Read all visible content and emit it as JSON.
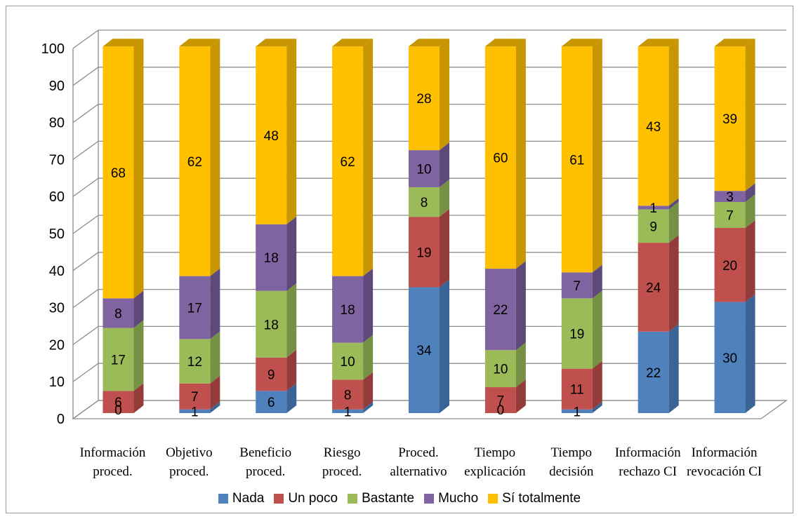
{
  "chart_data": {
    "type": "bar",
    "stacked": true,
    "three_d": true,
    "title": "",
    "xlabel": "",
    "ylabel": "",
    "ylim": [
      0,
      100
    ],
    "yticks": [
      "0",
      "10",
      "20",
      "30",
      "40",
      "50",
      "60",
      "70",
      "80",
      "90",
      "100"
    ],
    "grid": true,
    "legend_position": "bottom",
    "categories": [
      [
        "Información",
        "proced."
      ],
      [
        "Objetivo",
        "proced."
      ],
      [
        "Beneficio",
        "proced."
      ],
      [
        "Riesgo",
        "proced."
      ],
      [
        "Proced.",
        "alternativo"
      ],
      [
        "Tiempo",
        "explicación"
      ],
      [
        "Tiempo",
        "decisión"
      ],
      [
        "Información",
        "rechazo CI"
      ],
      [
        "Información",
        "revocación CI"
      ]
    ],
    "series": [
      {
        "name": "Nada",
        "color": "#4f81bd",
        "side": "#3a6496",
        "values": [
          0,
          1,
          6,
          1,
          34,
          0,
          1,
          22,
          30
        ]
      },
      {
        "name": "Un poco",
        "color": "#c0504d",
        "side": "#943c3a",
        "values": [
          6,
          7,
          9,
          8,
          19,
          7,
          11,
          24,
          20
        ]
      },
      {
        "name": "Bastante",
        "color": "#9bbb59",
        "side": "#769044",
        "values": [
          17,
          12,
          18,
          10,
          8,
          10,
          19,
          9,
          7
        ]
      },
      {
        "name": "Mucho",
        "color": "#8064a2",
        "side": "#5e4a7a",
        "values": [
          8,
          17,
          18,
          18,
          10,
          22,
          7,
          1,
          3
        ]
      },
      {
        "name": "Sí totalmente",
        "color": "#ffc000",
        "side": "#c89600",
        "values": [
          68,
          62,
          48,
          62,
          28,
          60,
          61,
          43,
          39
        ]
      }
    ]
  }
}
